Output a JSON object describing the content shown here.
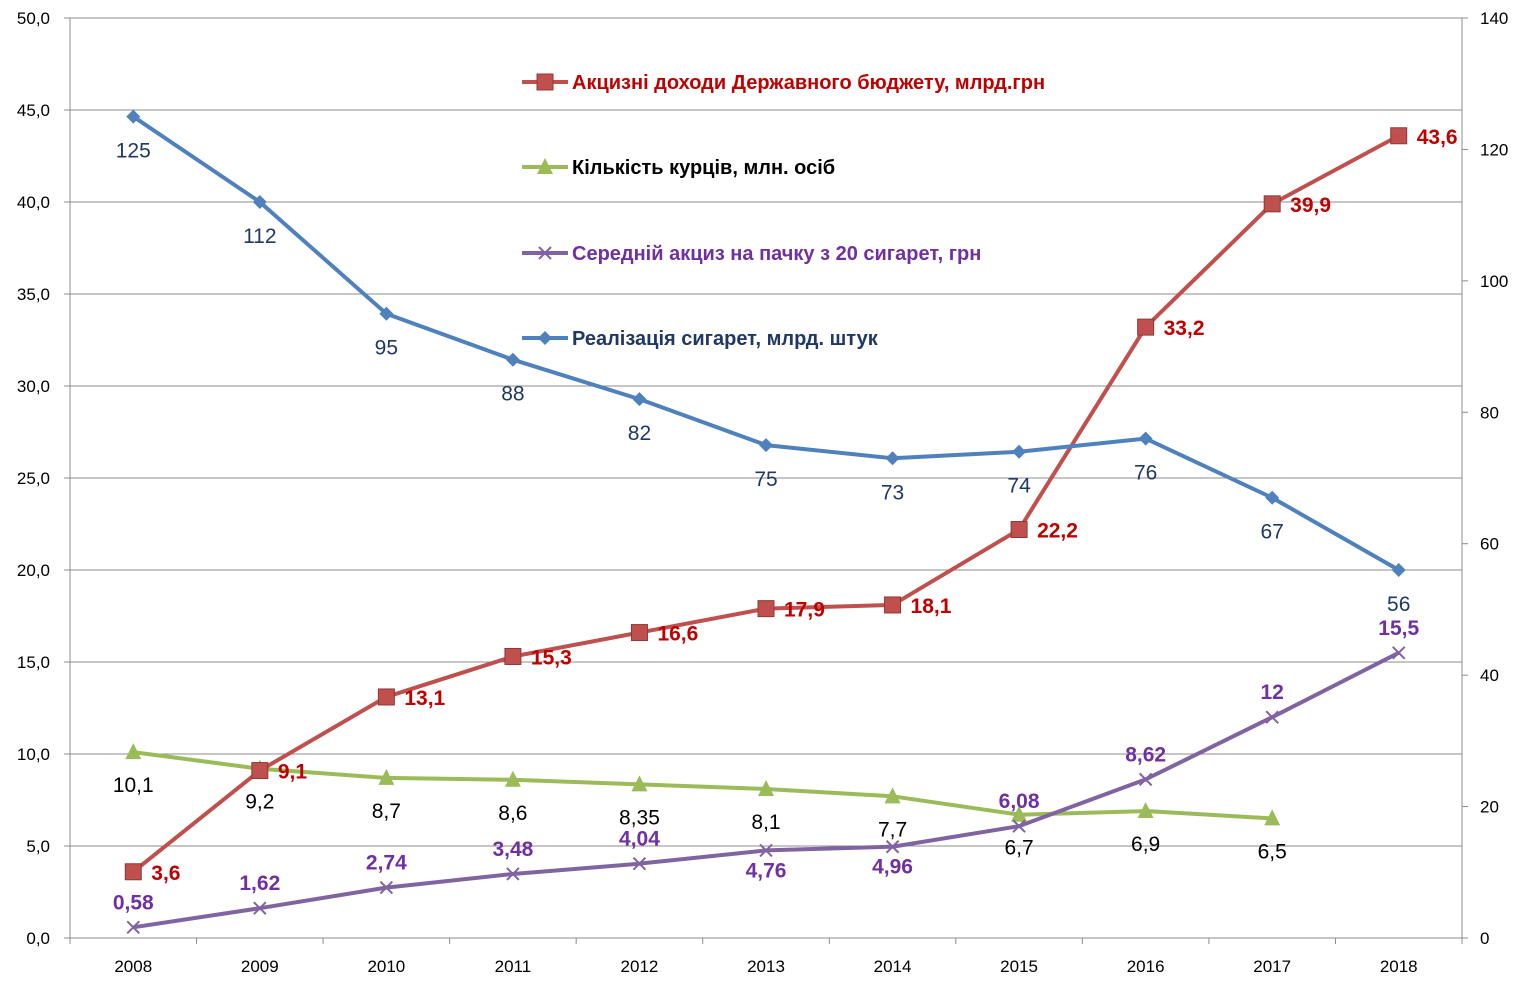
{
  "chart_data": {
    "type": "line",
    "categories": [
      "2008",
      "2009",
      "2010",
      "2011",
      "2012",
      "2013",
      "2014",
      "2015",
      "2016",
      "2017",
      "2018"
    ],
    "y_left": {
      "min": 0,
      "max": 50,
      "step": 5,
      "tick_labels": [
        "0,0",
        "5,0",
        "10,0",
        "15,0",
        "20,0",
        "25,0",
        "30,0",
        "35,0",
        "40,0",
        "45,0",
        "50,0"
      ]
    },
    "y_right": {
      "min": 0,
      "max": 140,
      "step": 20,
      "tick_labels": [
        "0",
        "20",
        "40",
        "60",
        "80",
        "100",
        "120",
        "140"
      ]
    },
    "grid": "horizontal",
    "legend_position": "top-center",
    "series": [
      {
        "name": "Акцизні доходи Державного бюджету, млрд.грн",
        "axis": "left",
        "color": "#C0504D",
        "label_color": "#C00000",
        "label_bold": true,
        "marker": "square",
        "values": [
          3.6,
          9.1,
          13.1,
          15.3,
          16.6,
          17.9,
          18.1,
          22.2,
          33.2,
          39.9,
          43.6
        ],
        "labels": [
          "3,6",
          "9,1",
          "13,1",
          "15,3",
          "16,6",
          "17,9",
          "18,1",
          "22,2",
          "33,2",
          "39,9",
          "43,6"
        ]
      },
      {
        "name": "Кількість курців, млн. осіб",
        "axis": "left",
        "color": "#9BBB59",
        "label_color": "#000000",
        "label_bold": false,
        "marker": "triangle",
        "values": [
          10.1,
          9.2,
          8.7,
          8.6,
          8.35,
          8.1,
          7.7,
          6.7,
          6.9,
          6.5,
          null
        ],
        "labels": [
          "10,1",
          "9,2",
          "8,7",
          "8,6",
          "8,35",
          "8,1",
          "7,7",
          "6,7",
          "6,9",
          "6,5",
          ""
        ]
      },
      {
        "name": "Середній акциз на пачку з 20 сигарет, грн",
        "axis": "left",
        "color": "#8064A2",
        "label_color": "#7030A0",
        "label_bold": true,
        "marker": "x",
        "values": [
          0.58,
          1.62,
          2.74,
          3.48,
          4.04,
          4.76,
          4.96,
          6.08,
          8.62,
          12,
          15.5
        ],
        "labels": [
          "0,58",
          "1,62",
          "2,74",
          "3,48",
          "4,04",
          "4,76",
          "4,96",
          "6,08",
          "8,62",
          "12",
          "15,5"
        ]
      },
      {
        "name": "Реалізація сигарет, млрд. штук",
        "axis": "right",
        "color": "#4F81BD",
        "label_color": "#1F3864",
        "label_bold": false,
        "marker": "diamond",
        "values": [
          125,
          112,
          95,
          88,
          82,
          75,
          73,
          74,
          76,
          67,
          56
        ],
        "labels": [
          "125",
          "112",
          "95",
          "88",
          "82",
          "75",
          "73",
          "74",
          "76",
          "67",
          "56"
        ]
      }
    ]
  }
}
